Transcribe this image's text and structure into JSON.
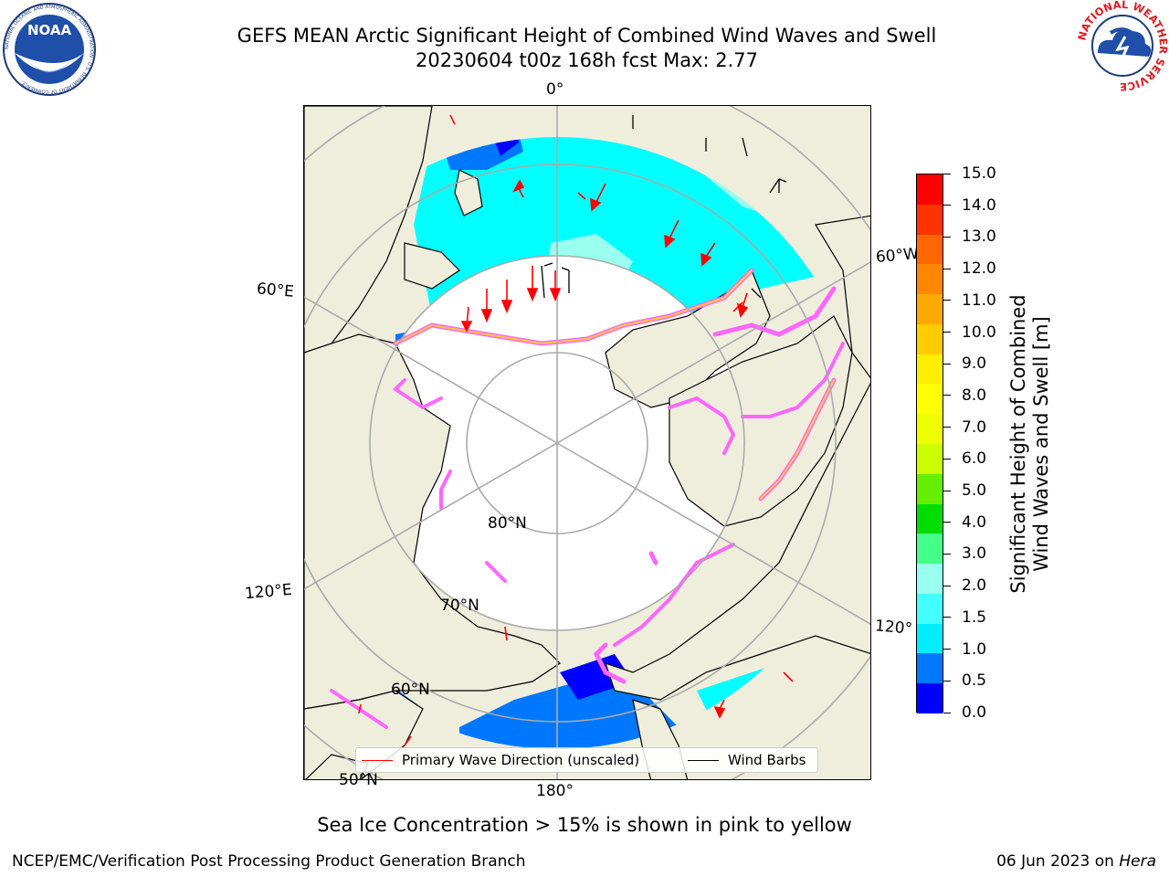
{
  "title": {
    "line1": "GEFS MEAN Arctic Significant Height of Combined Wind Waves and Swell",
    "line2": "20230604 t00z 168h fcst   Max: 2.77"
  },
  "logos": {
    "noaa_text": "NOAA",
    "noaa_ring": "NATIONAL OCEANIC AND ATMOSPHERIC ADMINISTRATION · U.S. DEPARTMENT OF COMMERCE",
    "nws_ring": "NATIONAL WEATHER SERVICE"
  },
  "map": {
    "lon_labels": {
      "top": "0°",
      "bottom": "180°",
      "left_upper": "60°E",
      "left_lower": "120°E",
      "right_upper": "60°W",
      "right_lower": "120°"
    },
    "lat_labels": {
      "lat80": "80°N",
      "lat70": "70°N",
      "lat60": "60°N",
      "lat50": "50°N"
    },
    "colors": {
      "land": "#efeedd",
      "ocean_no_data": "#ffffff",
      "sea_ice_low": "#ff66ff",
      "sea_ice_high": "#ffcc33",
      "wave_direction": "#ff0000",
      "wind_barb": "#000000"
    }
  },
  "colorbar": {
    "title_line1": "Significant Height of Combined",
    "title_line2": "Wind Waves and Swell [m]",
    "ticks": [
      "15.0",
      "14.0",
      "13.0",
      "12.0",
      "11.0",
      "10.0",
      "9.0",
      "8.0",
      "7.0",
      "6.0",
      "5.0",
      "4.0",
      "3.0",
      "2.0",
      "1.5",
      "1.0",
      "0.5",
      "0.0"
    ],
    "colors": [
      "#ff0000",
      "#ff3300",
      "#ff6600",
      "#ff8800",
      "#ffaa00",
      "#ffcc00",
      "#ffee00",
      "#ffff00",
      "#eeff00",
      "#ccff00",
      "#66ee00",
      "#00dd00",
      "#44ff88",
      "#99ffee",
      "#44ffff",
      "#00eeff",
      "#0077ff",
      "#0000ff"
    ]
  },
  "legend": {
    "wave_label": "Primary Wave Direction (unscaled)",
    "barb_label": "Wind Barbs"
  },
  "bottom_caption": "Sea Ice Concentration > 15% is shown in pink to yellow",
  "footer": {
    "left": "NCEP/EMC/Verification Post Processing Product Generation Branch",
    "right_date": "06 Jun 2023 on ",
    "right_host": "Hera"
  }
}
